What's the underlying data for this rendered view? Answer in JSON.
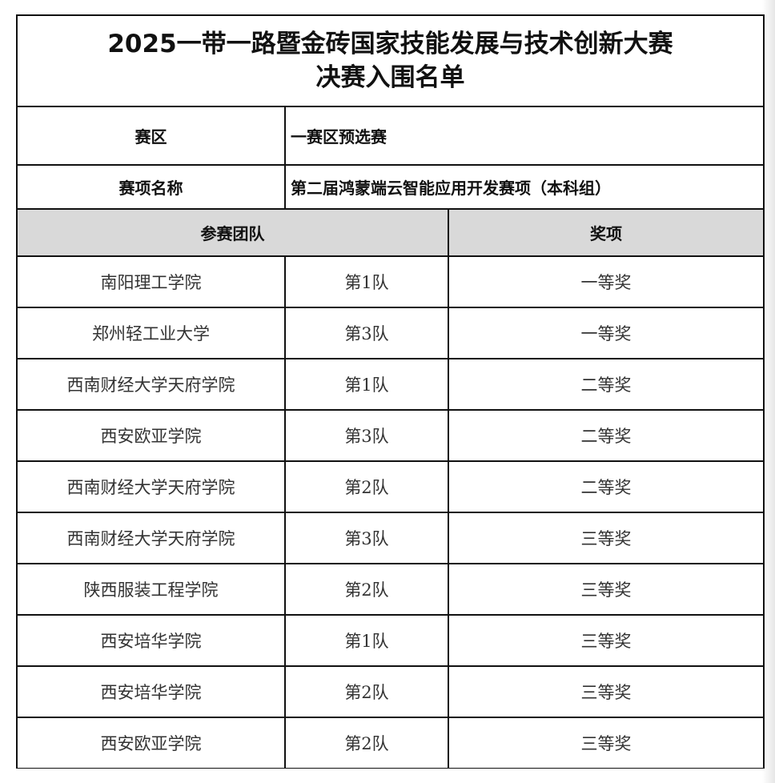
{
  "title_line1": "2025一带一路暨金砖国家技能发展与技术创新大赛",
  "title_line2": "决赛入围名单",
  "region_label": "赛区",
  "region_value": "一赛区预选赛",
  "event_label": "赛项名称",
  "event_value": "第二届鸿蒙端云智能应用开发赛项（本科组）",
  "headers": {
    "team": "参赛团队",
    "award": "奖项"
  },
  "rows": [
    {
      "school": "南阳理工学院",
      "team": "第1队",
      "award": "一等奖"
    },
    {
      "school": "郑州轻工业大学",
      "team": "第3队",
      "award": "一等奖"
    },
    {
      "school": "西南财经大学天府学院",
      "team": "第1队",
      "award": "二等奖"
    },
    {
      "school": "西安欧亚学院",
      "team": "第3队",
      "award": "二等奖"
    },
    {
      "school": "西南财经大学天府学院",
      "team": "第2队",
      "award": "二等奖"
    },
    {
      "school": "西南财经大学天府学院",
      "team": "第3队",
      "award": "三等奖"
    },
    {
      "school": "陕西服装工程学院",
      "team": "第2队",
      "award": "三等奖"
    },
    {
      "school": "西安培华学院",
      "team": "第1队",
      "award": "三等奖"
    },
    {
      "school": "西安培华学院",
      "team": "第2队",
      "award": "三等奖"
    },
    {
      "school": "西安欧亚学院",
      "team": "第2队",
      "award": "三等奖"
    }
  ]
}
